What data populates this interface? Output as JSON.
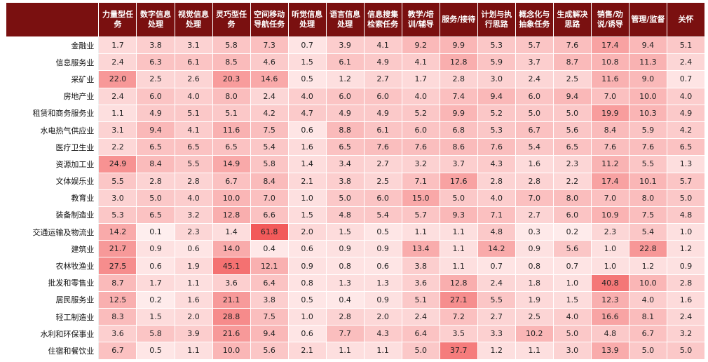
{
  "chart_data": {
    "type": "heatmap",
    "title": "",
    "columns": [
      "力量型任务",
      "数字信息处理",
      "视觉信息处理",
      "灵巧型任务",
      "空间移动导航任务",
      "听觉信息处理",
      "语言信息处理",
      "信息搜集检索任务",
      "教学/培训/辅导",
      "服务/接待",
      "计划与执行思路",
      "概念化与抽象任务",
      "生成解决思路",
      "销售/劝说/诱导",
      "管理/监督",
      "关怀"
    ],
    "rows": [
      {
        "label": "金融业",
        "values": [
          1.7,
          3.8,
          3.1,
          5.8,
          7.3,
          0.7,
          3.9,
          4.1,
          9.2,
          9.9,
          5.3,
          5.7,
          7.6,
          17.4,
          9.4,
          5.1
        ]
      },
      {
        "label": "信息服务业",
        "values": [
          2.4,
          6.3,
          6.1,
          8.5,
          4.6,
          1.5,
          6.1,
          4.9,
          4.1,
          12.8,
          5.9,
          3.7,
          8.7,
          10.8,
          11.3,
          2.4
        ]
      },
      {
        "label": "采矿业",
        "values": [
          22.0,
          2.5,
          2.6,
          20.3,
          14.6,
          0.5,
          1.2,
          2.7,
          1.7,
          2.8,
          3.0,
          2.4,
          2.5,
          11.6,
          9.0,
          0.7
        ]
      },
      {
        "label": "房地产业",
        "values": [
          2.4,
          6.0,
          4.0,
          8.0,
          2.4,
          4.0,
          6.0,
          6.0,
          4.0,
          7.4,
          9.4,
          6.0,
          9.4,
          7.0,
          10.0,
          4.0
        ]
      },
      {
        "label": "租赁和商务服务业",
        "values": [
          1.1,
          4.9,
          5.1,
          5.1,
          4.2,
          4.7,
          4.9,
          4.9,
          5.2,
          9.9,
          5.2,
          5.0,
          5.0,
          19.9,
          10.3,
          4.9
        ]
      },
      {
        "label": "水电热气供应业",
        "values": [
          3.1,
          9.4,
          4.1,
          11.6,
          7.5,
          0.6,
          8.8,
          6.1,
          6.0,
          6.8,
          5.3,
          6.7,
          5.6,
          8.4,
          5.9,
          4.2
        ]
      },
      {
        "label": "医疗卫生业",
        "values": [
          2.2,
          6.5,
          6.5,
          6.5,
          5.4,
          1.6,
          6.5,
          7.6,
          7.6,
          8.6,
          7.6,
          5.4,
          6.5,
          7.6,
          7.6,
          6.5
        ]
      },
      {
        "label": "资源加工业",
        "values": [
          24.9,
          8.4,
          5.5,
          14.9,
          5.8,
          1.4,
          3.4,
          2.7,
          3.2,
          3.7,
          4.3,
          1.6,
          2.3,
          11.2,
          5.5,
          1.3
        ]
      },
      {
        "label": "文体娱乐业",
        "values": [
          5.5,
          2.8,
          2.8,
          6.7,
          8.4,
          2.1,
          3.8,
          2.5,
          7.1,
          17.6,
          2.8,
          2.8,
          2.2,
          17.4,
          10.1,
          5.7
        ]
      },
      {
        "label": "教育业",
        "values": [
          3.0,
          5.0,
          4.0,
          10.0,
          7.0,
          1.0,
          5.0,
          6.0,
          15.0,
          5.0,
          4.0,
          7.0,
          8.0,
          7.0,
          8.0,
          5.0
        ]
      },
      {
        "label": "装备制造业",
        "values": [
          5.3,
          6.5,
          3.2,
          12.8,
          6.6,
          1.5,
          4.8,
          5.4,
          5.7,
          9.3,
          7.1,
          2.7,
          6.0,
          10.9,
          7.5,
          4.8
        ]
      },
      {
        "label": "交通运输及物流业",
        "values": [
          14.2,
          0.1,
          2.3,
          1.4,
          61.8,
          2.0,
          1.5,
          0.5,
          1.1,
          1.1,
          4.8,
          0.3,
          0.2,
          2.3,
          5.4,
          1.0
        ]
      },
      {
        "label": "建筑业",
        "values": [
          21.7,
          0.9,
          0.6,
          14.0,
          0.4,
          0.6,
          0.9,
          0.9,
          13.4,
          1.1,
          14.2,
          0.9,
          5.6,
          1.0,
          22.8,
          1.2
        ]
      },
      {
        "label": "农林牧渔业",
        "values": [
          27.5,
          0.6,
          1.9,
          45.1,
          12.1,
          0.9,
          0.8,
          0.6,
          3.8,
          1.1,
          0.7,
          0.8,
          0.7,
          1.0,
          1.2,
          0.9
        ]
      },
      {
        "label": "批发和零售业",
        "values": [
          8.7,
          1.7,
          1.1,
          3.6,
          6.4,
          0.8,
          1.3,
          1.3,
          3.6,
          12.8,
          2.4,
          1.8,
          1.0,
          40.8,
          10.0,
          2.8
        ]
      },
      {
        "label": "居民服务业",
        "values": [
          12.5,
          0.2,
          1.6,
          21.1,
          3.8,
          0.5,
          0.4,
          0.9,
          5.1,
          27.1,
          5.5,
          1.9,
          1.5,
          12.3,
          4.0,
          1.6
        ]
      },
      {
        "label": "轻工制造业",
        "values": [
          8.3,
          1.5,
          2.0,
          28.8,
          7.5,
          1.0,
          2.8,
          2.0,
          2.4,
          7.2,
          2.7,
          2.5,
          4.0,
          16.6,
          8.1,
          2.4
        ]
      },
      {
        "label": "水利和环保事业",
        "values": [
          3.6,
          5.8,
          3.9,
          21.6,
          9.4,
          0.6,
          7.7,
          4.3,
          6.4,
          3.5,
          3.3,
          10.2,
          5.0,
          4.8,
          6.7,
          3.2
        ]
      },
      {
        "label": "住宿和餐饮业",
        "values": [
          6.7,
          0.5,
          1.1,
          10.0,
          5.6,
          2.1,
          1.1,
          1.1,
          5.0,
          37.7,
          1.2,
          1.1,
          3.0,
          13.9,
          5.0,
          5.0
        ]
      }
    ],
    "color_low": "#fff4f4",
    "color_high": "#f25a5a",
    "header_color": "#7a1010"
  }
}
